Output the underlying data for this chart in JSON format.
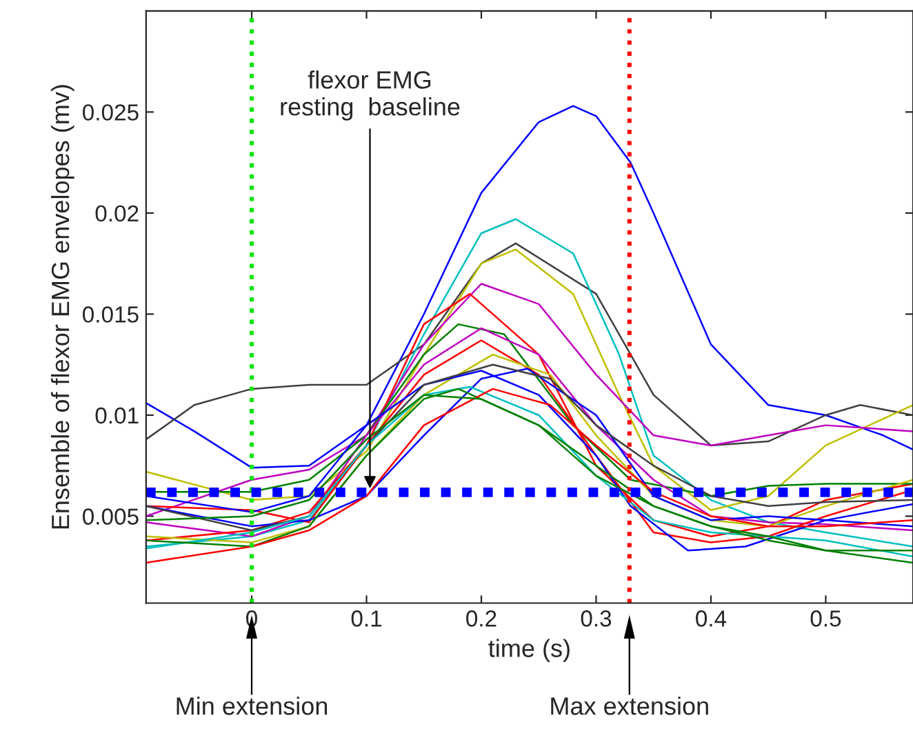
{
  "chart_data": {
    "type": "line",
    "xlabel": "time (s)",
    "ylabel": "Ensemble of flexor EMG envelopes (mv)",
    "xlim": [
      -0.092,
      0.576
    ],
    "ylim": [
      0.0007,
      0.03
    ],
    "xticks": [
      0,
      0.1,
      0.2,
      0.3,
      0.4,
      0.5
    ],
    "yticks": [
      0.005,
      0.01,
      0.015,
      0.02,
      0.025
    ],
    "grid": false,
    "line_style": "solid",
    "series": [
      {
        "color": "#0000ff",
        "x": [
          -0.092,
          -0.05,
          0,
          0.05,
          0.1,
          0.15,
          0.2,
          0.25,
          0.28,
          0.3,
          0.33,
          0.35,
          0.4,
          0.45,
          0.5,
          0.55,
          0.576
        ],
        "values": [
          0.0106,
          0.0092,
          0.0074,
          0.0075,
          0.0095,
          0.015,
          0.021,
          0.0245,
          0.0253,
          0.0248,
          0.0225,
          0.02,
          0.0135,
          0.0105,
          0.01,
          0.009,
          0.0083
        ]
      },
      {
        "color": "#404040",
        "x": [
          -0.092,
          -0.05,
          0,
          0.05,
          0.1,
          0.15,
          0.2,
          0.23,
          0.3,
          0.35,
          0.4,
          0.45,
          0.5,
          0.53,
          0.576
        ],
        "values": [
          0.0088,
          0.0105,
          0.0113,
          0.0115,
          0.0115,
          0.0135,
          0.0175,
          0.0185,
          0.016,
          0.011,
          0.0085,
          0.0087,
          0.01,
          0.0105,
          0.01
        ]
      },
      {
        "color": "#00bfbf",
        "x": [
          -0.092,
          0,
          0.05,
          0.1,
          0.15,
          0.2,
          0.23,
          0.28,
          0.32,
          0.35,
          0.4,
          0.45,
          0.5,
          0.576
        ],
        "values": [
          0.0035,
          0.004,
          0.0048,
          0.0085,
          0.014,
          0.019,
          0.0197,
          0.018,
          0.013,
          0.008,
          0.0058,
          0.0047,
          0.0042,
          0.0035
        ]
      },
      {
        "color": "#bfbf00",
        "x": [
          -0.092,
          0,
          0.05,
          0.1,
          0.15,
          0.2,
          0.23,
          0.28,
          0.32,
          0.35,
          0.4,
          0.45,
          0.5,
          0.576
        ],
        "values": [
          0.0072,
          0.0058,
          0.006,
          0.0082,
          0.013,
          0.0175,
          0.0182,
          0.016,
          0.011,
          0.0075,
          0.0053,
          0.006,
          0.0085,
          0.0105
        ]
      },
      {
        "color": "#bf00bf",
        "x": [
          -0.092,
          0,
          0.05,
          0.1,
          0.15,
          0.2,
          0.25,
          0.3,
          0.35,
          0.4,
          0.45,
          0.5,
          0.576
        ],
        "values": [
          0.005,
          0.0068,
          0.0073,
          0.009,
          0.0135,
          0.0165,
          0.0155,
          0.012,
          0.009,
          0.0085,
          0.009,
          0.0095,
          0.0092
        ]
      },
      {
        "color": "#ff0000",
        "x": [
          -0.092,
          0,
          0.05,
          0.1,
          0.15,
          0.19,
          0.25,
          0.3,
          0.35,
          0.4,
          0.45,
          0.5,
          0.576
        ],
        "values": [
          0.0055,
          0.0053,
          0.0047,
          0.0085,
          0.0145,
          0.016,
          0.013,
          0.0075,
          0.0048,
          0.004,
          0.0045,
          0.0058,
          0.0066
        ]
      },
      {
        "color": "#008000",
        "x": [
          -0.092,
          0,
          0.05,
          0.1,
          0.15,
          0.18,
          0.22,
          0.28,
          0.33,
          0.4,
          0.45,
          0.5,
          0.576
        ],
        "values": [
          0.0062,
          0.0062,
          0.0068,
          0.009,
          0.013,
          0.0145,
          0.014,
          0.0095,
          0.0068,
          0.006,
          0.0065,
          0.0066,
          0.0066
        ]
      },
      {
        "color": "#bf00bf",
        "x": [
          -0.092,
          0,
          0.05,
          0.1,
          0.15,
          0.2,
          0.25,
          0.3,
          0.35,
          0.4,
          0.45,
          0.5,
          0.576
        ],
        "values": [
          0.0047,
          0.004,
          0.005,
          0.009,
          0.0125,
          0.0143,
          0.013,
          0.0095,
          0.0068,
          0.005,
          0.0047,
          0.0046,
          0.0043
        ]
      },
      {
        "color": "#ff0000",
        "x": [
          -0.092,
          0,
          0.05,
          0.1,
          0.15,
          0.2,
          0.25,
          0.3,
          0.35,
          0.4,
          0.45,
          0.5,
          0.576
        ],
        "values": [
          0.0038,
          0.0043,
          0.0052,
          0.0085,
          0.012,
          0.0137,
          0.012,
          0.008,
          0.0042,
          0.0037,
          0.004,
          0.005,
          0.0063
        ]
      },
      {
        "color": "#bfbf00",
        "x": [
          -0.092,
          0,
          0.05,
          0.1,
          0.15,
          0.21,
          0.26,
          0.3,
          0.35,
          0.4,
          0.45,
          0.5,
          0.576
        ],
        "values": [
          0.004,
          0.0037,
          0.0045,
          0.008,
          0.011,
          0.013,
          0.012,
          0.009,
          0.006,
          0.0048,
          0.0045,
          0.0055,
          0.0068
        ]
      },
      {
        "color": "#0000ff",
        "x": [
          -0.092,
          0,
          0.05,
          0.1,
          0.15,
          0.2,
          0.24,
          0.3,
          0.35,
          0.4,
          0.45,
          0.5,
          0.576
        ],
        "values": [
          0.0055,
          0.0045,
          0.0048,
          0.006,
          0.009,
          0.0118,
          0.0123,
          0.01,
          0.006,
          0.0048,
          0.005,
          0.0048,
          0.0045
        ]
      },
      {
        "color": "#0000ff",
        "x": [
          -0.092,
          0,
          0.05,
          0.1,
          0.15,
          0.2,
          0.25,
          0.3,
          0.33,
          0.38,
          0.43,
          0.5,
          0.576
        ],
        "values": [
          0.006,
          0.0052,
          0.006,
          0.0095,
          0.0115,
          0.0122,
          0.011,
          0.008,
          0.0055,
          0.0033,
          0.0035,
          0.0048,
          0.0056
        ]
      },
      {
        "color": "#404040",
        "x": [
          -0.092,
          0,
          0.05,
          0.1,
          0.15,
          0.21,
          0.26,
          0.3,
          0.35,
          0.4,
          0.45,
          0.5,
          0.576
        ],
        "values": [
          0.0055,
          0.0043,
          0.005,
          0.0085,
          0.0115,
          0.0125,
          0.0118,
          0.0095,
          0.0075,
          0.006,
          0.0055,
          0.0057,
          0.0058
        ]
      },
      {
        "color": "#00bfbf",
        "x": [
          -0.092,
          0,
          0.05,
          0.1,
          0.15,
          0.19,
          0.25,
          0.3,
          0.35,
          0.4,
          0.45,
          0.5,
          0.576
        ],
        "values": [
          0.0034,
          0.0042,
          0.005,
          0.0085,
          0.011,
          0.0114,
          0.01,
          0.007,
          0.0048,
          0.0042,
          0.004,
          0.0038,
          0.003
        ]
      },
      {
        "color": "#008000",
        "x": [
          -0.092,
          0,
          0.05,
          0.1,
          0.15,
          0.18,
          0.25,
          0.3,
          0.35,
          0.4,
          0.45,
          0.5,
          0.576
        ],
        "values": [
          0.0038,
          0.0035,
          0.0045,
          0.008,
          0.0108,
          0.0113,
          0.0095,
          0.007,
          0.0055,
          0.0045,
          0.004,
          0.0033,
          0.0027
        ]
      },
      {
        "color": "#ff0000",
        "x": [
          -0.092,
          0,
          0.05,
          0.1,
          0.15,
          0.21,
          0.26,
          0.3,
          0.35,
          0.4,
          0.45,
          0.5,
          0.576
        ],
        "values": [
          0.0027,
          0.0035,
          0.0043,
          0.006,
          0.0095,
          0.0113,
          0.0105,
          0.0085,
          0.0062,
          0.005,
          0.0045,
          0.0045,
          0.0048
        ]
      },
      {
        "color": "#008000",
        "x": [
          -0.092,
          0,
          0.05,
          0.1,
          0.15,
          0.2,
          0.25,
          0.3,
          0.35,
          0.4,
          0.45,
          0.5,
          0.576
        ],
        "values": [
          0.0048,
          0.005,
          0.0058,
          0.0088,
          0.011,
          0.0108,
          0.0095,
          0.0075,
          0.0055,
          0.0045,
          0.0038,
          0.0033,
          0.0033
        ]
      }
    ],
    "ref_lines": [
      {
        "axis": "x",
        "value": 0,
        "color": "#00e600",
        "line_style": "dotted"
      },
      {
        "axis": "x",
        "value": 0.329,
        "color": "#ff0000",
        "line_style": "dotted"
      },
      {
        "axis": "y",
        "value": 0.00618,
        "color": "#0000ff",
        "line_style": "dotted"
      }
    ],
    "annotations": [
      {
        "text": "flexor EMG\nresting  baseline",
        "x": 0.103,
        "y": 0.00618
      },
      "Min extension",
      "Max extension"
    ]
  }
}
